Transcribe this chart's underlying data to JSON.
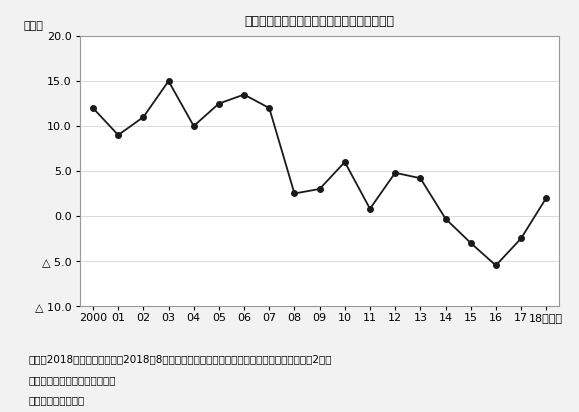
{
  "title": "図　実質可処分所得の伸び（前年比）の推移",
  "ylabel": "（％）",
  "xlabel_suffix": "（年）",
  "x_labels": [
    "2000",
    "01",
    "02",
    "03",
    "04",
    "05",
    "06",
    "07",
    "08",
    "09",
    "10",
    "11",
    "12",
    "13",
    "14",
    "15",
    "16",
    "17",
    "18"
  ],
  "x_values": [
    0,
    1,
    2,
    3,
    4,
    5,
    6,
    7,
    8,
    9,
    10,
    11,
    12,
    13,
    14,
    15,
    16,
    17,
    18
  ],
  "y_values": [
    12.0,
    9.0,
    11.0,
    15.0,
    10.0,
    12.5,
    13.5,
    12.0,
    2.5,
    3.0,
    6.0,
    0.8,
    4.8,
    4.2,
    -0.3,
    -3.0,
    -5.5,
    -2.5,
    2.0
  ],
  "ylim": [
    -10.0,
    20.0
  ],
  "yticks": [
    -10.0,
    -5.0,
    0.0,
    5.0,
    10.0,
    15.0,
    20.0
  ],
  "ytick_labels": [
    "△ 10.0",
    "△ 5.0",
    "0.0",
    "5.0",
    "10.0",
    "15.0",
    "20.0"
  ],
  "line_color": "#1a1a1a",
  "marker": "o",
  "marker_size": 4,
  "note1": "（注）2018年は前年同期比　2018年8月期は前年同期比０．５％減、９月期は０．９％減と2カ月",
  "note2": "連続で前年を割り込んでいる。",
  "source": "（出所）連邦統計局",
  "background_color": "#ffffff",
  "fig_background_color": "#f2f2f2",
  "border_color": "#999999"
}
